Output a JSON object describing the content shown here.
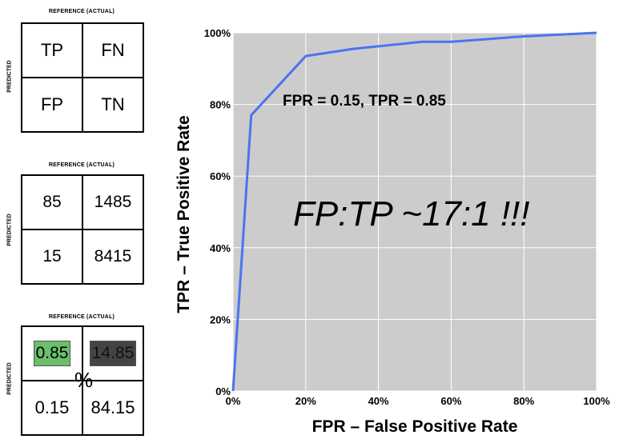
{
  "matrices": [
    {
      "reference_label": "REFERENCE (ACTUAL)",
      "predicted_label": "PREDICTED",
      "cells": [
        "TP",
        "FN",
        "FP",
        "TN"
      ]
    },
    {
      "reference_label": "REFERENCE (ACTUAL)",
      "predicted_label": "PREDICTED",
      "cells": [
        "85",
        "1485",
        "15",
        "8415"
      ]
    },
    {
      "reference_label": "REFERENCE (ACTUAL)",
      "predicted_label": "PREDICTED",
      "cells": [
        "0.85",
        "14.85",
        "0.15",
        "84.15"
      ],
      "percent_symbol": "%",
      "highlight_colors": {
        "tp": "#6bbf6b",
        "fn": "#444444"
      }
    }
  ],
  "chart_data": {
    "type": "line",
    "title": "",
    "xlabel": "FPR – False Positive Rate",
    "ylabel": "TPR – True Positive Rate",
    "xlim": [
      0,
      100
    ],
    "ylim": [
      0,
      100
    ],
    "xticks": [
      "0%",
      "20%",
      "40%",
      "60%",
      "80%",
      "100%"
    ],
    "yticks": [
      "0%",
      "20%",
      "40%",
      "60%",
      "80%",
      "100%"
    ],
    "grid": true,
    "background": "#cccccc",
    "series": [
      {
        "color": "#4a74ef",
        "x": [
          0,
          5,
          20,
          33,
          52,
          60,
          80,
          100
        ],
        "y": [
          0,
          77,
          93.5,
          95.5,
          97.5,
          97.5,
          99,
          100
        ]
      }
    ],
    "annotations": [
      {
        "text": "FPR = 0.15, TPR = 0.85"
      },
      {
        "text": "FP:TP ~17:1 !!!"
      }
    ]
  }
}
